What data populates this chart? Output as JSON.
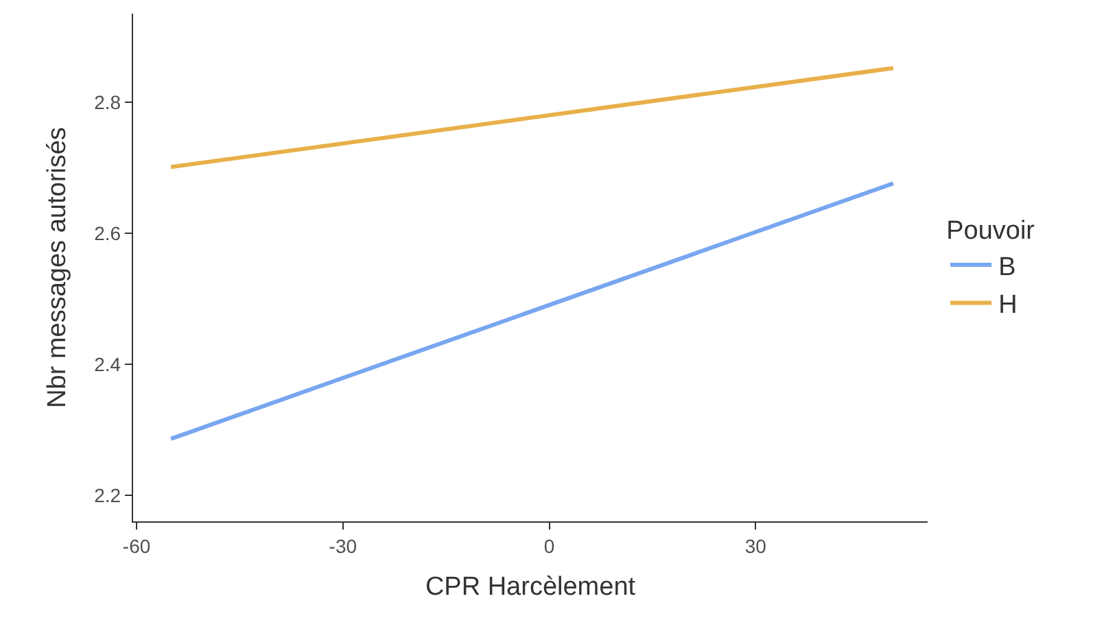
{
  "chart_data": {
    "type": "line",
    "xlabel": "CPR Harcèlement",
    "ylabel": "Nbr messages autorisés",
    "legend_title": "Pouvoir",
    "x": [
      -55,
      50
    ],
    "series": [
      {
        "name": "B",
        "color": "#78a6f0",
        "values": [
          2.286,
          2.676
        ]
      },
      {
        "name": "H",
        "color": "#e8b04a",
        "values": [
          2.701,
          2.852
        ]
      }
    ],
    "xlim": [
      -60.5,
      55
    ],
    "ylim": [
      2.16,
      2.935
    ],
    "xticks": [
      -60,
      -30,
      0,
      30
    ],
    "yticks": [
      2.2,
      2.4,
      2.6,
      2.8
    ],
    "grid": false,
    "legend": "right",
    "marker": "none",
    "line_style": "solid"
  }
}
